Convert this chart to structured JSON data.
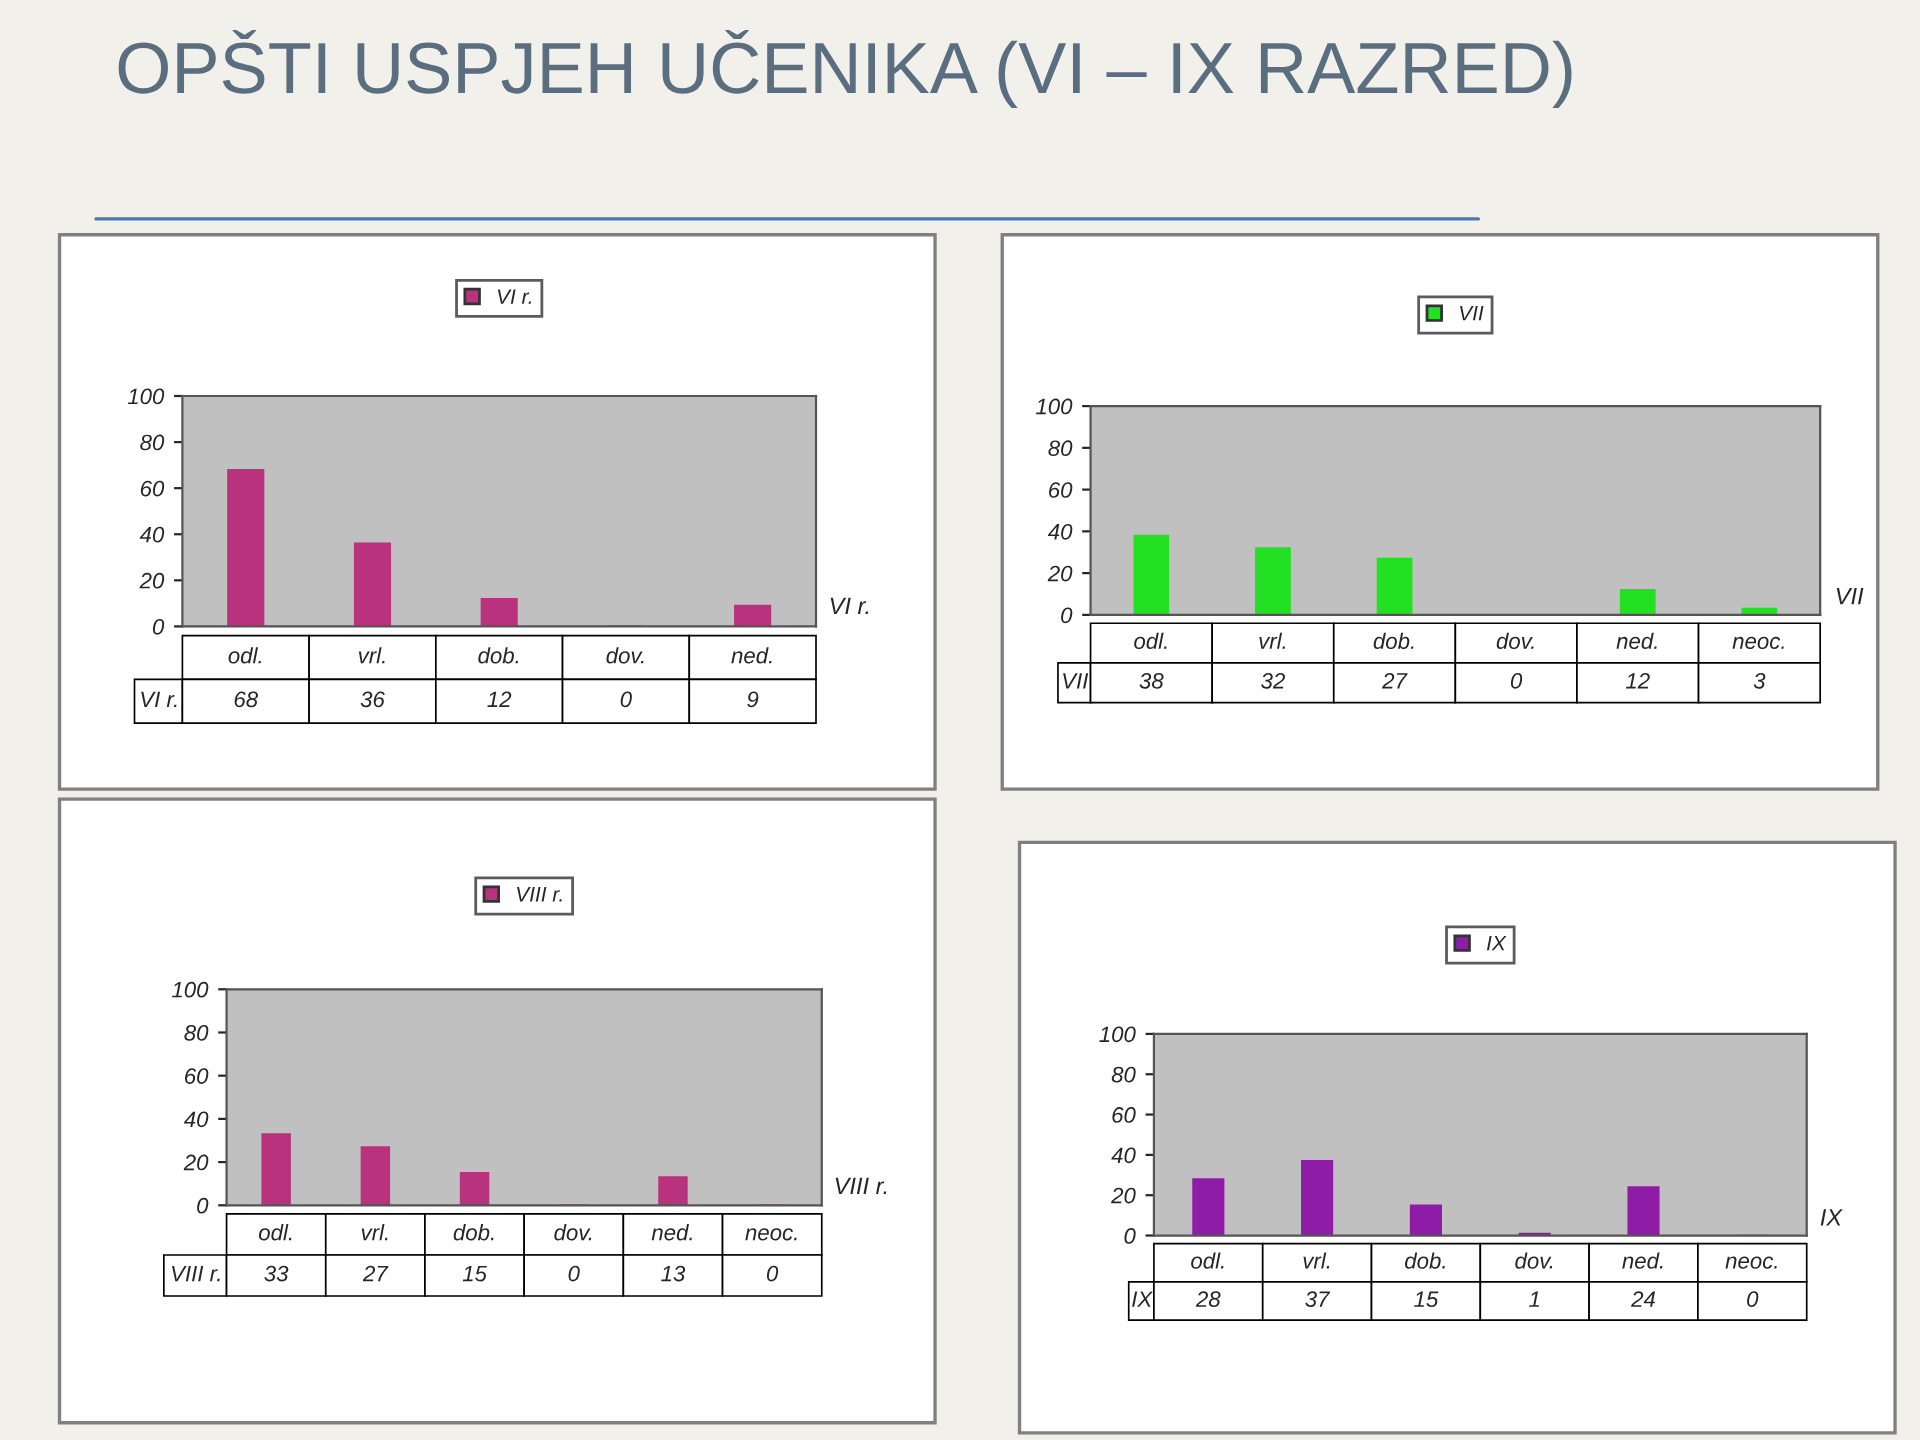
{
  "chart_data": [
    {
      "type": "bar",
      "title": "OPŠTI USPJEH UČENIKA (VI – IX RAZRED)",
      "categories": [
        "odl.",
        "vrl.",
        "dob.",
        "dov.",
        "ned."
      ],
      "series": [
        {
          "name": "VI r.",
          "color": "#b8327e",
          "values": [
            68,
            36,
            12,
            0,
            9
          ]
        }
      ],
      "ylim": [
        0,
        100
      ],
      "yticks": [
        0,
        20,
        40,
        60,
        80,
        100
      ],
      "legend": "top",
      "data_labels": true,
      "grid": false
    },
    {
      "type": "bar",
      "categories": [
        "odl.",
        "vrl.",
        "dob.",
        "dov.",
        "ned.",
        "neoc."
      ],
      "series": [
        {
          "name": "VII",
          "color": "#22e022",
          "values": [
            38,
            32,
            27,
            0,
            12,
            3
          ]
        }
      ],
      "ylim": [
        0,
        100
      ],
      "yticks": [
        0,
        20,
        40,
        60,
        80,
        100
      ],
      "legend": "top",
      "data_labels": true,
      "grid": false
    },
    {
      "type": "bar",
      "categories": [
        "odl.",
        "vrl.",
        "dob.",
        "dov.",
        "ned.",
        "neoc."
      ],
      "series": [
        {
          "name": "VIII r.",
          "color": "#b8327e",
          "values": [
            33,
            27,
            15,
            0,
            13,
            0
          ]
        }
      ],
      "ylim": [
        0,
        100
      ],
      "yticks": [
        0,
        20,
        40,
        60,
        80,
        100
      ],
      "legend": "top",
      "data_labels": true,
      "grid": false
    },
    {
      "type": "bar",
      "categories": [
        "odl.",
        "vrl.",
        "dob.",
        "dov.",
        "ned.",
        "neoc."
      ],
      "series": [
        {
          "name": "IX",
          "color": "#8e1ca6",
          "values": [
            28,
            37,
            15,
            1,
            24,
            0
          ]
        }
      ],
      "ylim": [
        0,
        100
      ],
      "yticks": [
        0,
        20,
        40,
        60,
        80,
        100
      ],
      "legend": "top",
      "data_labels": true,
      "grid": false
    }
  ]
}
